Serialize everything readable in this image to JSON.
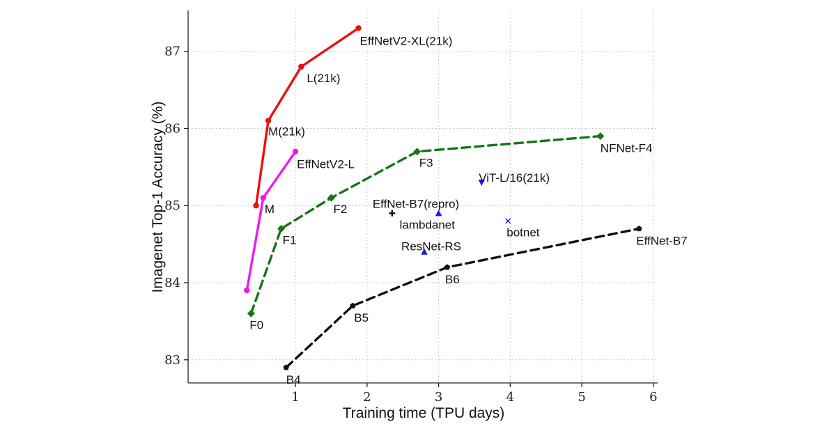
{
  "chart_data": {
    "type": "line",
    "title": "",
    "xlabel": "Training time (TPU days)",
    "ylabel": "Imagenet Top-1 Accuracy (%)",
    "xlim": [
      -0.5,
      6.06
    ],
    "ylim": [
      82.7,
      87.53
    ],
    "xticks": [
      1,
      2,
      3,
      4,
      5,
      6
    ],
    "yticks": [
      83,
      84,
      85,
      86,
      87
    ],
    "grid": true,
    "series": [
      {
        "color": "#e81010",
        "dashed": false,
        "marker": "circle",
        "points": [
          {
            "x": 0.45,
            "y": 85.0,
            "label": ""
          },
          {
            "x": 0.62,
            "y": 86.1,
            "label": "M(21k)"
          },
          {
            "x": 1.08,
            "y": 86.8,
            "label": "L(21k)"
          },
          {
            "x": 1.88,
            "y": 87.3,
            "label": "EffNetV2-XL(21k)"
          }
        ]
      },
      {
        "color": "#ee1aee",
        "dashed": false,
        "marker": "circle",
        "points": [
          {
            "x": 0.32,
            "y": 83.9,
            "label": ""
          },
          {
            "x": 0.55,
            "y": 85.1,
            "label": "M"
          },
          {
            "x": 1.0,
            "y": 85.7,
            "label": "EffNetV2-L"
          }
        ]
      },
      {
        "color": "#167516",
        "dashed": true,
        "marker": "diamond",
        "points": [
          {
            "x": 0.38,
            "y": 83.6,
            "label": "F0"
          },
          {
            "x": 0.8,
            "y": 84.7,
            "label": "F1"
          },
          {
            "x": 1.5,
            "y": 85.1,
            "label": "F2"
          },
          {
            "x": 2.7,
            "y": 85.7,
            "label": "F3"
          },
          {
            "x": 5.26,
            "y": 85.9,
            "label": "NFNet-F4"
          }
        ]
      },
      {
        "color": "#111111",
        "dashed": true,
        "marker": "pentagon",
        "points": [
          {
            "x": 0.87,
            "y": 82.9,
            "label": "B4"
          },
          {
            "x": 1.8,
            "y": 83.7,
            "label": "B5"
          },
          {
            "x": 3.12,
            "y": 84.2,
            "label": "B6"
          },
          {
            "x": 5.8,
            "y": 84.7,
            "label": "EffNet-B7"
          }
        ]
      }
    ],
    "scatter": [
      {
        "x": 2.35,
        "y": 84.9,
        "label": "EffNet-B7(repro)",
        "marker": "plus",
        "color": "#111111"
      },
      {
        "x": 3.0,
        "y": 84.9,
        "label": "lambdanet",
        "marker": "triangle-up",
        "color": "#1a1ae6"
      },
      {
        "x": 2.8,
        "y": 84.4,
        "label": "ResNet-RS",
        "marker": "triangle-up",
        "color": "#1a1ae6"
      },
      {
        "x": 3.6,
        "y": 85.3,
        "label": "ViT-L/16(21k)",
        "marker": "triangle-down",
        "color": "#1a1ae6"
      },
      {
        "x": 3.97,
        "y": 84.8,
        "label": "botnet",
        "marker": "x",
        "color": "#1a1ae6"
      }
    ]
  }
}
